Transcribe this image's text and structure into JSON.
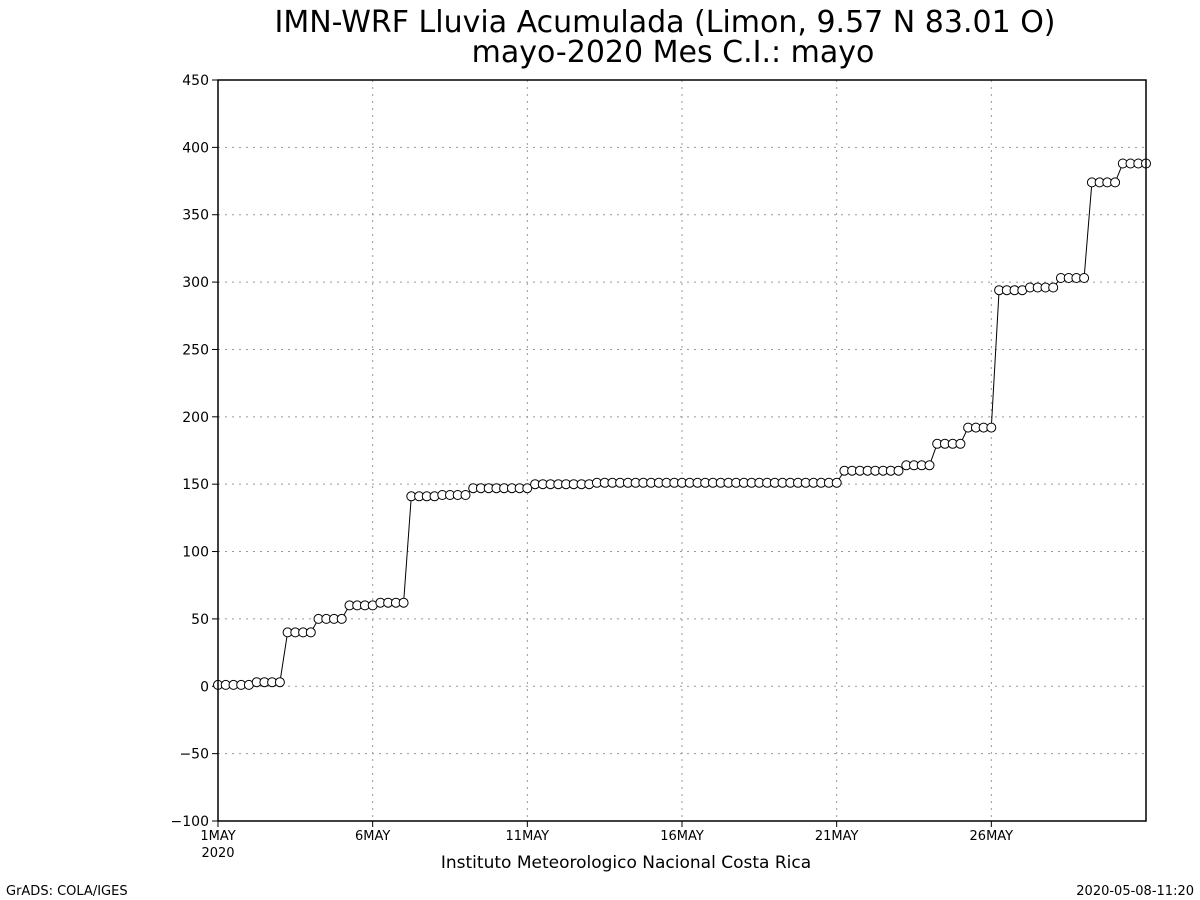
{
  "chart_data": {
    "type": "line",
    "title": "IMN-WRF  Lluvia Acumulada (Limon, 9.57  N 83.01  O)",
    "subtitle": "mayo-2020 Mes C.I.: mayo",
    "xlabel": "Instituto Meteorologico Nacional Costa Rica",
    "ylabel": "",
    "ylim": [
      -100,
      450
    ],
    "yticks": [
      -100,
      -50,
      0,
      50,
      100,
      150,
      200,
      250,
      300,
      350,
      400,
      450
    ],
    "xlim_days": [
      1,
      31
    ],
    "xticks": [
      {
        "day": 1,
        "label": "1MAY",
        "sub": "2020"
      },
      {
        "day": 6,
        "label": "6MAY",
        "sub": ""
      },
      {
        "day": 11,
        "label": "11MAY",
        "sub": ""
      },
      {
        "day": 16,
        "label": "16MAY",
        "sub": ""
      },
      {
        "day": 21,
        "label": "21MAY",
        "sub": ""
      },
      {
        "day": 26,
        "label": "26MAY",
        "sub": ""
      }
    ],
    "grid": true,
    "marker": "open-circle",
    "line_color": "#000000",
    "x_step_days": 0.25,
    "x_start_day": 1,
    "values": [
      1,
      1,
      1,
      1,
      1,
      3,
      3,
      3,
      3,
      40,
      40,
      40,
      40,
      50,
      50,
      50,
      50,
      60,
      60,
      60,
      60,
      62,
      62,
      62,
      62,
      141,
      141,
      141,
      141,
      142,
      142,
      142,
      142,
      147,
      147,
      147,
      147,
      147,
      147,
      147,
      147,
      150,
      150,
      150,
      150,
      150,
      150,
      150,
      150,
      151,
      151,
      151,
      151,
      151,
      151,
      151,
      151,
      151,
      151,
      151,
      151,
      151,
      151,
      151,
      151,
      151,
      151,
      151,
      151,
      151,
      151,
      151,
      151,
      151,
      151,
      151,
      151,
      151,
      151,
      151,
      151,
      160,
      160,
      160,
      160,
      160,
      160,
      160,
      160,
      164,
      164,
      164,
      164,
      180,
      180,
      180,
      180,
      192,
      192,
      192,
      192,
      294,
      294,
      294,
      294,
      296,
      296,
      296,
      296,
      303,
      303,
      303,
      303,
      374,
      374,
      374,
      374,
      388,
      388,
      388,
      388
    ]
  },
  "footer": {
    "left": "GrADS: COLA/IGES",
    "right": "2020-05-08-11:20"
  }
}
